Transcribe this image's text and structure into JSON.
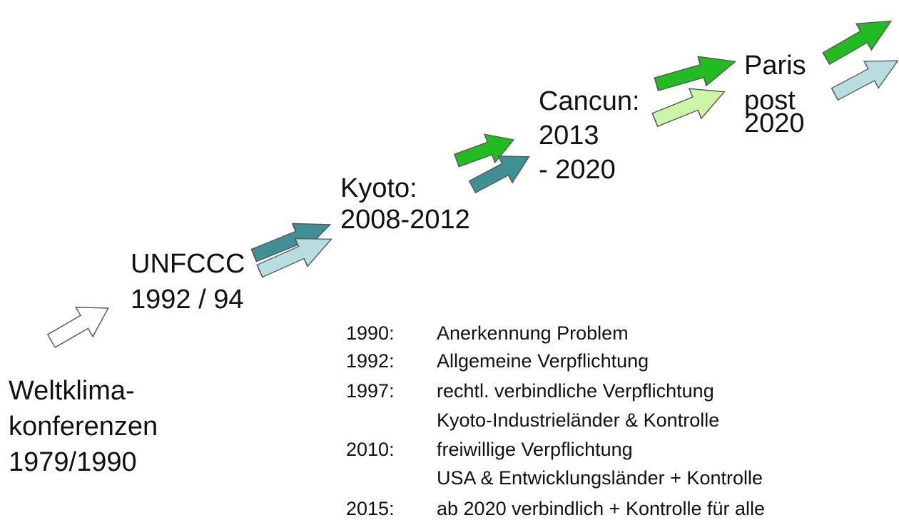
{
  "stages": [
    {
      "lines": [
        "Weltklima-",
        "konferenzen",
        "1979/1990"
      ]
    },
    {
      "lines": [
        "UNFCCC",
        "1992 / 94"
      ]
    },
    {
      "lines": [
        "Kyoto:",
        "2008-2012"
      ]
    },
    {
      "lines": [
        "Cancun:",
        "2013",
        "- 2020"
      ]
    },
    {
      "lines": [
        "Paris",
        "post",
        "2020"
      ]
    }
  ],
  "timeline": [
    {
      "year": "1990:",
      "lines": [
        "Anerkennung Problem"
      ]
    },
    {
      "year": "1992:",
      "lines": [
        "Allgemeine Verpflichtung"
      ]
    },
    {
      "year": "1997:",
      "lines": [
        "rechtl. verbindliche Verpflichtung",
        "Kyoto-Industrieländer & Kontrolle"
      ]
    },
    {
      "year": "2010:",
      "lines": [
        "freiwillige Verpflichtung",
        "USA & Entwicklungsländer + Kontrolle"
      ]
    },
    {
      "year": "2015:",
      "lines": [
        "ab 2020 verbindlich + Kontrolle für alle"
      ]
    }
  ]
}
